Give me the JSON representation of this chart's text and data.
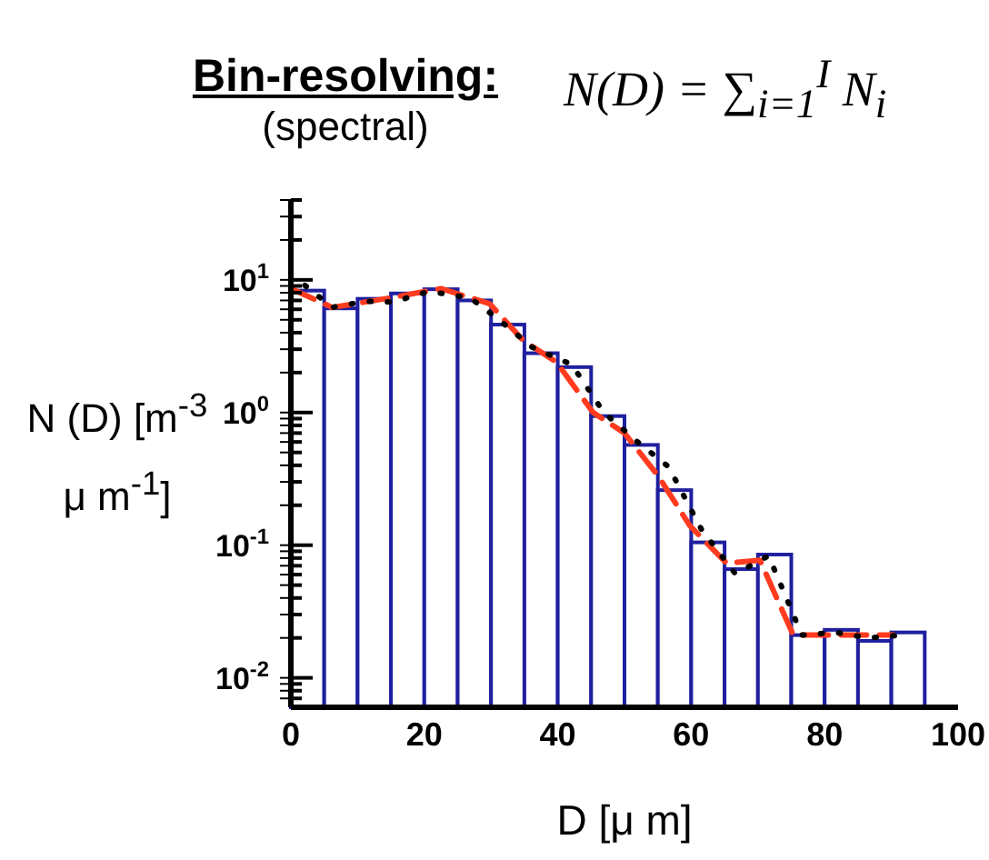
{
  "chart_data": {
    "type": "histogram",
    "title": "Bin-resolving:",
    "subtitle": "(spectral)",
    "annotations": [
      "N(D) = ∑$_{i=1}$$^{I}$ N$_{i}$"
    ],
    "xlabel": "D [μ m]",
    "ylabel": "N (D) [m$^{-3}$ μ m$^{-1}$]",
    "bins": [
      0,
      5,
      10,
      15,
      20,
      25,
      30,
      35,
      40,
      45,
      50,
      55,
      60,
      65,
      70,
      75,
      80,
      85,
      90,
      95
    ],
    "series": [
      {
        "color": "#1f1f9f",
        "values": [
          8.3,
          6.1,
          7.2,
          7.9,
          8.5,
          7.0,
          4.6,
          2.8,
          2.2,
          0.94,
          0.57,
          0.26,
          0.105,
          0.066,
          0.085,
          0.021,
          0.023,
          0.019,
          0.022
        ]
      },
      {
        "type": "line",
        "color": "#ff3b1f",
        "line_style": "dashed",
        "x": [
          0,
          6.2,
          14.8,
          22.5,
          29.8,
          34.8,
          39.8,
          45.3,
          50,
          55.1,
          59.8,
          65.3,
          70.3,
          75.3,
          90.3
        ],
        "values": [
          8.6,
          6.2,
          7.3,
          8.6,
          6.6,
          3.5,
          2.4,
          1.0,
          0.7,
          0.33,
          0.14,
          0.073,
          0.077,
          0.021,
          0.021
        ]
      },
      {
        "type": "line",
        "color": "#000000",
        "line_style": "dotted",
        "x": [
          2.1,
          6.2,
          11.2,
          15.3,
          20.7,
          26.9,
          31.2,
          36.2,
          42.1,
          46.9,
          51.8,
          56.6,
          61.6,
          66.6,
          71.6,
          76.6,
          81.6,
          86.6,
          91.6
        ],
        "values": [
          9.1,
          6.2,
          6.9,
          6.8,
          8.2,
          7.3,
          5.0,
          3.1,
          2.3,
          1.0,
          0.61,
          0.39,
          0.13,
          0.061,
          0.083,
          0.021,
          0.022,
          0.02,
          0.021
        ]
      }
    ],
    "log": "y",
    "marker": "none",
    "grid": false,
    "legend": false,
    "xlim": [
      0,
      100
    ],
    "xticks": [
      0,
      20,
      40,
      60,
      80,
      100
    ],
    "ylim": [
      0.006,
      40
    ],
    "yticks": [
      {
        "value": 0.007,
        "label": null
      },
      {
        "value": 0.008,
        "label": null
      },
      {
        "value": 0.009,
        "label": null
      },
      {
        "value": 0.01,
        "label": "10$^{-2}$"
      },
      {
        "value": 0.02,
        "label": null
      },
      {
        "value": 0.03,
        "label": null
      },
      {
        "value": 0.04,
        "label": null
      },
      {
        "value": 0.05,
        "label": null
      },
      {
        "value": 0.06,
        "label": null
      },
      {
        "value": 0.07,
        "label": null
      },
      {
        "value": 0.08,
        "label": null
      },
      {
        "value": 0.09,
        "label": null
      },
      {
        "value": 0.1,
        "label": "10$^{-1}$"
      },
      {
        "value": 0.2,
        "label": null
      },
      {
        "value": 0.3,
        "label": null
      },
      {
        "value": 0.4,
        "label": null
      },
      {
        "value": 0.5,
        "label": null
      },
      {
        "value": 0.6,
        "label": null
      },
      {
        "value": 0.7,
        "label": null
      },
      {
        "value": 0.8,
        "label": null
      },
      {
        "value": 0.9,
        "label": null
      },
      {
        "value": 1,
        "label": "10$^{0}$"
      },
      {
        "value": 2,
        "label": null
      },
      {
        "value": 3,
        "label": null
      },
      {
        "value": 4,
        "label": null
      },
      {
        "value": 5,
        "label": null
      },
      {
        "value": 6,
        "label": null
      },
      {
        "value": 7,
        "label": null
      },
      {
        "value": 8,
        "label": null
      },
      {
        "value": 9,
        "label": null
      },
      {
        "value": 10,
        "label": "10$^{1}$"
      },
      {
        "value": 20,
        "label": null
      },
      {
        "value": 30,
        "label": null
      },
      {
        "value": 40,
        "label": null
      }
    ]
  }
}
